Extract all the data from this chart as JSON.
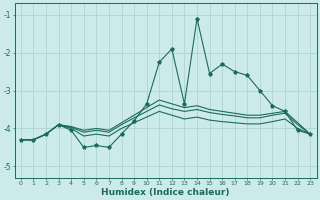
{
  "xlabel": "Humidex (Indice chaleur)",
  "x": [
    0,
    1,
    2,
    3,
    4,
    5,
    6,
    7,
    8,
    9,
    10,
    11,
    12,
    13,
    14,
    15,
    16,
    17,
    18,
    19,
    20,
    21,
    22,
    23
  ],
  "line_jagged": [
    -4.3,
    -4.3,
    -4.15,
    -3.9,
    -4.05,
    -4.5,
    -4.45,
    -4.5,
    -4.15,
    -3.8,
    -3.35,
    -2.25,
    -1.9,
    -3.35,
    -1.1,
    -2.55,
    -2.3,
    -2.5,
    -2.6,
    -3.0,
    -3.4,
    -3.55,
    -4.05,
    -4.15
  ],
  "line_mid1": [
    -4.3,
    -4.3,
    -4.15,
    -3.9,
    -3.95,
    -4.05,
    -4.0,
    -4.05,
    -3.85,
    -3.65,
    -3.45,
    -3.25,
    -3.35,
    -3.45,
    -3.4,
    -3.5,
    -3.55,
    -3.6,
    -3.65,
    -3.65,
    -3.6,
    -3.55,
    -3.85,
    -4.15
  ],
  "line_mid2": [
    -4.3,
    -4.3,
    -4.15,
    -3.9,
    -3.97,
    -4.1,
    -4.05,
    -4.1,
    -3.9,
    -3.72,
    -3.55,
    -3.38,
    -3.48,
    -3.55,
    -3.5,
    -3.58,
    -3.63,
    -3.67,
    -3.72,
    -3.72,
    -3.65,
    -3.6,
    -3.9,
    -4.15
  ],
  "line_flat": [
    -4.3,
    -4.3,
    -4.15,
    -3.9,
    -4.0,
    -4.2,
    -4.15,
    -4.2,
    -4.0,
    -3.85,
    -3.7,
    -3.55,
    -3.65,
    -3.75,
    -3.7,
    -3.78,
    -3.82,
    -3.85,
    -3.88,
    -3.88,
    -3.82,
    -3.75,
    -4.0,
    -4.15
  ],
  "bg_color": "#cdeaea",
  "grid_color": "#aed4d4",
  "line_color": "#1a6b5a",
  "ylim": [
    -5.3,
    -0.7
  ],
  "xlim": [
    -0.5,
    23.5
  ]
}
